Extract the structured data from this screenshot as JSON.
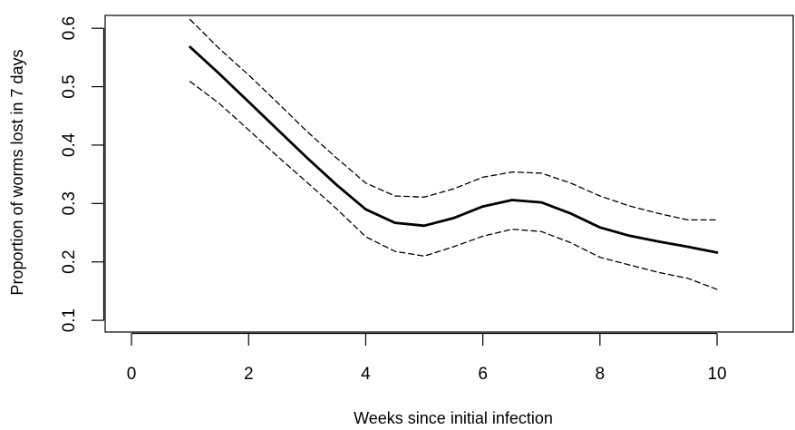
{
  "chart_data": {
    "type": "line",
    "title": "",
    "xlabel": "Weeks since initial infection",
    "ylabel": "Proportion of worms lost in 7 days",
    "xlim": [
      -0.45,
      11.3
    ],
    "ylim": [
      0.08,
      0.622
    ],
    "x_ticks": [
      "0",
      "2",
      "4",
      "6",
      "8",
      "10"
    ],
    "y_ticks": [
      "0.1",
      "0.2",
      "0.3",
      "0.4",
      "0.5",
      "0.6"
    ],
    "grid": false,
    "legend": "none",
    "series": [
      {
        "style": "solid",
        "color": "#000000",
        "x": [
          1,
          1.5,
          2,
          2.5,
          3,
          3.5,
          4,
          4.5,
          5,
          5.5,
          6,
          6.5,
          7,
          7.5,
          8,
          8.5,
          9,
          9.5,
          10
        ],
        "y": [
          0.568,
          0.522,
          0.474,
          0.426,
          0.378,
          0.332,
          0.29,
          0.267,
          0.262,
          0.275,
          0.295,
          0.306,
          0.302,
          0.283,
          0.259,
          0.245,
          0.235,
          0.226,
          0.216
        ]
      },
      {
        "style": "dashed",
        "color": "#000000",
        "x": [
          1,
          1.5,
          2,
          2.5,
          3,
          3.5,
          4,
          4.5,
          5,
          5.5,
          6,
          6.5,
          7,
          7.5,
          8,
          8.5,
          9,
          9.5,
          10
        ],
        "y": [
          0.615,
          0.565,
          0.52,
          0.472,
          0.423,
          0.378,
          0.335,
          0.313,
          0.311,
          0.325,
          0.345,
          0.354,
          0.352,
          0.335,
          0.313,
          0.296,
          0.283,
          0.272,
          0.272
        ]
      },
      {
        "style": "dashed",
        "color": "#000000",
        "x": [
          1,
          1.5,
          2,
          2.5,
          3,
          3.5,
          4,
          4.5,
          5,
          5.5,
          6,
          6.5,
          7,
          7.5,
          8,
          8.5,
          9,
          9.5,
          10
        ],
        "y": [
          0.509,
          0.471,
          0.426,
          0.38,
          0.336,
          0.291,
          0.243,
          0.218,
          0.21,
          0.226,
          0.244,
          0.256,
          0.252,
          0.233,
          0.208,
          0.195,
          0.182,
          0.172,
          0.153
        ]
      }
    ]
  }
}
